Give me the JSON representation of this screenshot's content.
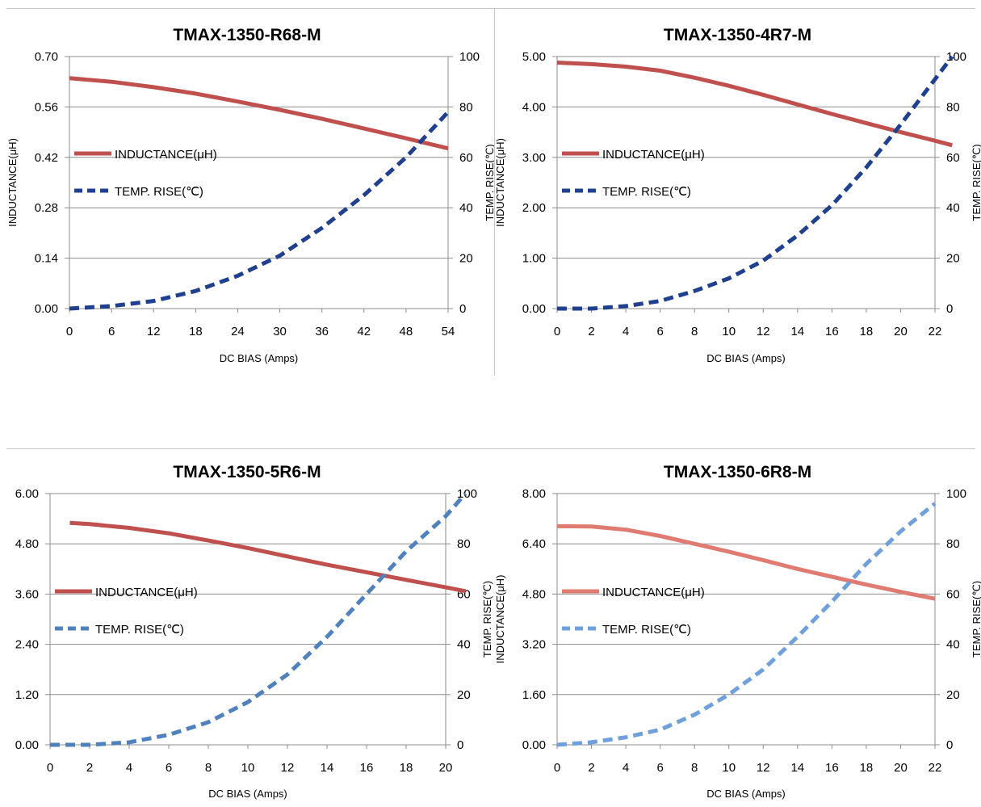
{
  "chart_data": [
    {
      "type": "line",
      "title": "TMAX-1350-R68-M",
      "xlabel": "DC BIAS  (Amps)",
      "ylabel": "INDUCTANCE(μH)",
      "y2label": "TEMP. RISE(℃)",
      "xticks": [
        "0",
        "6",
        "12",
        "18",
        "24",
        "30",
        "36",
        "42",
        "48",
        "54"
      ],
      "xlim": [
        0,
        54
      ],
      "yticks": [
        "0.00",
        "0.14",
        "0.28",
        "0.42",
        "0.56",
        "0.70"
      ],
      "ylim": [
        0,
        0.7
      ],
      "y2ticks": [
        "0",
        "20",
        "40",
        "60",
        "80",
        "100"
      ],
      "y2lim": [
        0,
        100
      ],
      "series": [
        {
          "name": "INDUCTANCE(μH)",
          "axis": "left",
          "color": "#c0504d",
          "x": [
            0,
            6,
            12,
            18,
            24,
            30,
            36,
            42,
            48,
            54
          ],
          "y": [
            0.64,
            0.63,
            0.615,
            0.597,
            0.575,
            0.552,
            0.527,
            0.5,
            0.473,
            0.445
          ]
        },
        {
          "name": "TEMP. RISE(℃)",
          "axis": "right",
          "color": "#1f3f8f",
          "x": [
            0,
            6,
            12,
            18,
            24,
            30,
            36,
            42,
            48,
            54
          ],
          "y": [
            0,
            1,
            3,
            7,
            13,
            21,
            32,
            45,
            60,
            78
          ]
        }
      ],
      "legend": "left"
    },
    {
      "type": "line",
      "title": "TMAX-1350-4R7-M",
      "xlabel": "DC BIAS  (Amps)",
      "ylabel": "INDUCTANCE(μH)",
      "y2label": "TEMP. RISE(℃)",
      "xticks": [
        "0",
        "2",
        "4",
        "6",
        "8",
        "10",
        "12",
        "14",
        "16",
        "18",
        "20",
        "22"
      ],
      "xlim": [
        0,
        22
      ],
      "yticks": [
        "0.00",
        "1.00",
        "2.00",
        "3.00",
        "4.00",
        "5.00"
      ],
      "ylim": [
        0,
        5
      ],
      "y2ticks": [
        "0",
        "20",
        "40",
        "60",
        "80",
        "100"
      ],
      "y2lim": [
        0,
        100
      ],
      "series": [
        {
          "name": "INDUCTANCE(μH)",
          "axis": "left",
          "color": "#c0504d",
          "x": [
            0,
            2,
            4,
            6,
            8,
            10,
            12,
            14,
            16,
            18,
            20,
            22,
            23
          ],
          "y": [
            4.88,
            4.85,
            4.8,
            4.72,
            4.58,
            4.42,
            4.24,
            4.05,
            3.86,
            3.68,
            3.5,
            3.33,
            3.24
          ]
        },
        {
          "name": "TEMP. RISE(℃)",
          "axis": "right",
          "color": "#1f3f8f",
          "x": [
            0,
            2,
            4,
            6,
            8,
            10,
            12,
            14,
            16,
            18,
            20,
            22,
            23
          ],
          "y": [
            0,
            0,
            1,
            3,
            7,
            12,
            19,
            29,
            41,
            56,
            73,
            91,
            100
          ]
        }
      ],
      "legend": "left"
    },
    {
      "type": "line",
      "title": "TMAX-1350-5R6-M",
      "xlabel": "DC BIAS  (Amps)",
      "ylabel": "INDUCTANCE(μH)",
      "y2label": "TEMP. RISE(℃)",
      "xticks": [
        "0",
        "2",
        "4",
        "6",
        "8",
        "10",
        "12",
        "14",
        "16",
        "18",
        "20"
      ],
      "xlim": [
        0,
        20
      ],
      "yticks": [
        "0.00",
        "1.20",
        "2.40",
        "3.60",
        "4.80",
        "6.00"
      ],
      "ylim": [
        0,
        6
      ],
      "y2ticks": [
        "0",
        "20",
        "40",
        "60",
        "80",
        "100"
      ],
      "y2lim": [
        0,
        100
      ],
      "series": [
        {
          "name": "INDUCTANCE(μH)",
          "axis": "left",
          "color": "#c0504d",
          "x": [
            1,
            2,
            4,
            6,
            8,
            10,
            12,
            14,
            16,
            18,
            20,
            21
          ],
          "y": [
            5.3,
            5.27,
            5.18,
            5.05,
            4.88,
            4.7,
            4.5,
            4.3,
            4.12,
            3.94,
            3.76,
            3.67
          ]
        },
        {
          "name": "TEMP. RISE(℃)",
          "axis": "right",
          "color": "#4f81bd",
          "x": [
            0,
            2,
            4,
            6,
            8,
            10,
            12,
            14,
            16,
            18,
            20,
            21
          ],
          "y": [
            0,
            0,
            1,
            4,
            9,
            17,
            28,
            43,
            60,
            77,
            91,
            100
          ]
        }
      ],
      "legend": "left"
    },
    {
      "type": "line",
      "title": "TMAX-1350-6R8-M",
      "xlabel": "DC BIAS  (Amps)",
      "ylabel": "INDUCTANCE(μH)",
      "y2label": "TEMP. RISE(℃)",
      "xticks": [
        "0",
        "2",
        "4",
        "6",
        "8",
        "10",
        "12",
        "14",
        "16",
        "18",
        "20",
        "22"
      ],
      "xlim": [
        0,
        22
      ],
      "yticks": [
        "0.00",
        "1.60",
        "3.20",
        "4.80",
        "6.40",
        "8.00"
      ],
      "ylim": [
        0,
        8
      ],
      "y2ticks": [
        "0",
        "20",
        "40",
        "60",
        "80",
        "100"
      ],
      "y2lim": [
        0,
        100
      ],
      "series": [
        {
          "name": "INDUCTANCE(μH)",
          "axis": "left",
          "color": "#e07b72",
          "x": [
            0,
            2,
            4,
            6,
            8,
            10,
            12,
            14,
            16,
            18,
            20,
            22
          ],
          "y": [
            6.96,
            6.95,
            6.85,
            6.65,
            6.4,
            6.15,
            5.88,
            5.6,
            5.35,
            5.1,
            4.87,
            4.65
          ]
        },
        {
          "name": "TEMP. RISE(℃)",
          "axis": "right",
          "color": "#6fa0dc",
          "x": [
            0,
            2,
            4,
            6,
            8,
            10,
            12,
            14,
            16,
            18,
            20,
            22
          ],
          "y": [
            0,
            1,
            3,
            6,
            12,
            20,
            30,
            43,
            57,
            72,
            85,
            96
          ]
        }
      ],
      "legend": "left"
    }
  ]
}
